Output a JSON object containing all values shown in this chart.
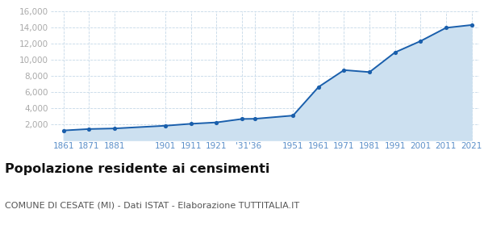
{
  "years": [
    1861,
    1871,
    1881,
    1901,
    1911,
    1921,
    1931,
    1936,
    1951,
    1961,
    1971,
    1981,
    1991,
    2001,
    2011,
    2021
  ],
  "population": [
    1200,
    1380,
    1450,
    1790,
    2030,
    2200,
    2630,
    2650,
    3050,
    6600,
    8700,
    8450,
    10900,
    12300,
    13950,
    14300
  ],
  "x_tick_labels": [
    "1861",
    "1871",
    "1881",
    "1901",
    "1911",
    "1921",
    "'31",
    "'36",
    "1951",
    "1961",
    "1971",
    "1981",
    "1991",
    "2001",
    "2011",
    "2021"
  ],
  "y_ticks": [
    2000,
    4000,
    6000,
    8000,
    10000,
    12000,
    14000,
    16000
  ],
  "y_tick_labels": [
    "2,000",
    "4,000",
    "6,000",
    "8,000",
    "10,000",
    "12,000",
    "14,000",
    "16,000"
  ],
  "ylim": [
    0,
    16000
  ],
  "xlim_left": 1856,
  "xlim_right": 2024,
  "line_color": "#1a5fac",
  "fill_color": "#cce0f0",
  "marker_color": "#1a5fac",
  "grid_color": "#c5d8e8",
  "background_color": "#ffffff",
  "title": "Popolazione residente ai censimenti",
  "subtitle": "COMUNE DI CESATE (MI) - Dati ISTAT - Elaborazione TUTTITALIA.IT",
  "title_fontsize": 11.5,
  "subtitle_fontsize": 8,
  "ytick_color": "#aaaaaa",
  "xtick_color": "#5b8fc9",
  "tick_fontsize": 7.5,
  "title_color": "#111111",
  "subtitle_color": "#555555"
}
